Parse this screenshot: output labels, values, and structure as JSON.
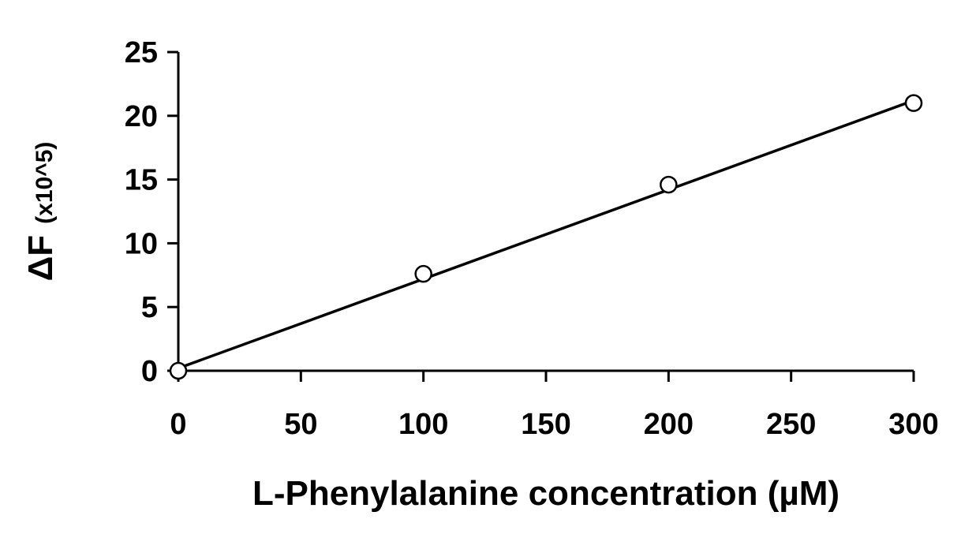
{
  "chart_data": {
    "type": "scatter",
    "title": "",
    "xlabel": "L-Phenylalanine concentration (µM)",
    "ylabel": "ΔF",
    "ylabel_suffix": "(x10^5)",
    "xlim": [
      0,
      300
    ],
    "ylim": [
      0,
      25
    ],
    "x_ticks": [
      0,
      50,
      100,
      150,
      200,
      250,
      300
    ],
    "y_ticks": [
      0,
      5,
      10,
      15,
      20,
      25
    ],
    "x_tick_labels": [
      "0",
      "50",
      "100",
      "150",
      "200",
      "250",
      "300"
    ],
    "y_tick_labels": [
      "0",
      "5",
      "10",
      "15",
      "20",
      "25"
    ],
    "grid": false,
    "legend": "none",
    "series": [
      {
        "marker": "open-circle",
        "x": [
          0,
          100,
          200,
          300
        ],
        "y": [
          0,
          7.6,
          14.6,
          21.0
        ]
      }
    ],
    "trendline": {
      "type": "linear",
      "x": [
        0,
        300
      ],
      "y": [
        0.2,
        21.2
      ]
    },
    "colors": {
      "line": "#000000",
      "marker_fill": "#ffffff",
      "marker_stroke": "#000000"
    }
  }
}
